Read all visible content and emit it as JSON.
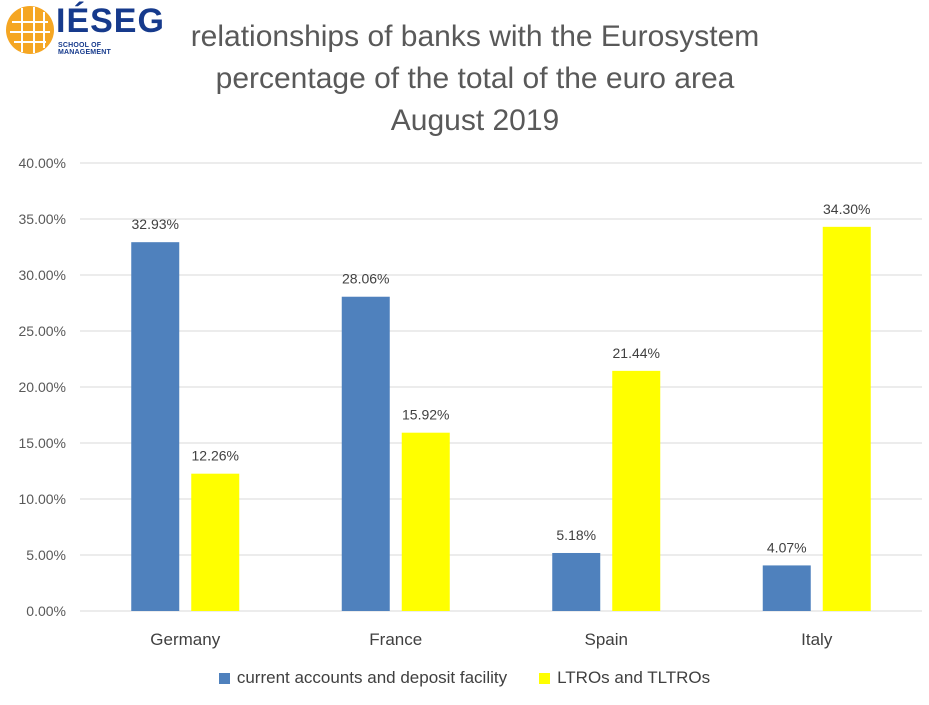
{
  "logo": {
    "word": "IÉSEG",
    "sub": "SCHOOL OF MANAGEMENT"
  },
  "colors": {
    "series1": "#4f81bd",
    "series2": "#ffff00",
    "grid": "#d9d9d9",
    "logo_orange": "#f5a623",
    "logo_blue": "#163a8c"
  },
  "chart_data": {
    "type": "bar",
    "title": [
      "relationships of banks with the Eurosystem",
      "percentage of the total of the euro area",
      "August 2019"
    ],
    "categories": [
      "Germany",
      "France",
      "Spain",
      "Italy"
    ],
    "series": [
      {
        "name": "current accounts and deposit facility",
        "values": [
          32.93,
          28.06,
          5.18,
          4.07
        ],
        "labels": [
          "32.93%",
          "28.06%",
          "5.18%",
          "4.07%"
        ]
      },
      {
        "name": "LTROs and TLTROs",
        "values": [
          12.26,
          15.92,
          21.44,
          34.3
        ],
        "labels": [
          "12.26%",
          "15.92%",
          "21.44%",
          "34.30%"
        ]
      }
    ],
    "ylim": [
      0,
      40
    ],
    "yticks": [
      0,
      5,
      10,
      15,
      20,
      25,
      30,
      35,
      40
    ],
    "ytick_labels": [
      "0.00%",
      "5.00%",
      "10.00%",
      "15.00%",
      "20.00%",
      "25.00%",
      "30.00%",
      "35.00%",
      "40.00%"
    ],
    "grid": true,
    "legend_position": "bottom"
  }
}
